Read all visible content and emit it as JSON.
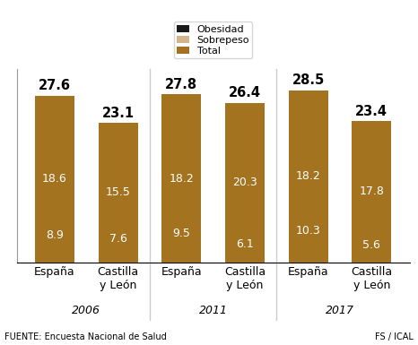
{
  "chart_data": {
    "type": "bar",
    "categories": [
      "España",
      "Castilla y León",
      "España",
      "Castilla y León",
      "España",
      "Castilla y León"
    ],
    "groups": [
      "2006",
      "2011",
      "2017"
    ],
    "series": [
      {
        "name": "Total",
        "color": "#a3731f",
        "values": [
          27.6,
          23.1,
          27.8,
          26.4,
          28.5,
          23.4
        ]
      },
      {
        "name": "Sobrepeso",
        "color": "#d4b48a",
        "values": [
          18.6,
          15.5,
          18.2,
          20.3,
          18.2,
          17.8
        ]
      },
      {
        "name": "Obesidad",
        "color": "#1a1a1a",
        "values": [
          8.9,
          7.6,
          9.5,
          6.1,
          10.3,
          5.6
        ]
      }
    ],
    "stacked": false,
    "data_labels": true,
    "legend": "upper center",
    "tick_labels": "x",
    "ylim": [
      0,
      32
    ],
    "source": "FUENTE: Encuesta Nacional de Salud",
    "credit": "FS / ICAL"
  }
}
